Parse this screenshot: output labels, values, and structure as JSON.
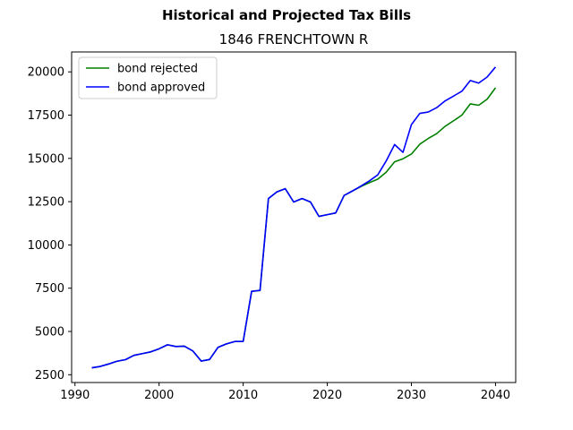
{
  "chart_data": {
    "type": "line",
    "suptitle": "Historical and Projected Tax Bills",
    "title": "1846 FRENCHTOWN R",
    "xlabel": "",
    "ylabel": "",
    "xlim": [
      1989.6,
      2042.4
    ],
    "ylim": [
      2050,
      21150
    ],
    "xticks": [
      1990,
      2000,
      2010,
      2020,
      2030,
      2040
    ],
    "yticks": [
      2500,
      5000,
      7500,
      10000,
      12500,
      15000,
      17500,
      20000
    ],
    "grid": false,
    "legend_placement": "top-left",
    "series": [
      {
        "name": "bond rejected",
        "color": "#008000",
        "x": [
          1992,
          1993,
          1994,
          1995,
          1996,
          1997,
          1998,
          1999,
          2000,
          2001,
          2002,
          2003,
          2004,
          2005,
          2006,
          2007,
          2008,
          2009,
          2010,
          2011,
          2012,
          2013,
          2014,
          2015,
          2016,
          2017,
          2018,
          2019,
          2020,
          2021,
          2022,
          2023,
          2024,
          2025,
          2026,
          2027,
          2028,
          2029,
          2030,
          2031,
          2032,
          2033,
          2034,
          2035,
          2036,
          2037,
          2038,
          2039,
          2040
        ],
        "y": [
          2900,
          2980,
          3120,
          3280,
          3370,
          3620,
          3720,
          3820,
          4000,
          4230,
          4130,
          4150,
          3880,
          3290,
          3380,
          4080,
          4280,
          4420,
          4430,
          7320,
          7370,
          12680,
          13060,
          13250,
          12480,
          12680,
          12480,
          11650,
          11750,
          11850,
          12860,
          13120,
          13380,
          13600,
          13800,
          14200,
          14800,
          14980,
          15250,
          15820,
          16150,
          16430,
          16850,
          17170,
          17500,
          18150,
          18070,
          18420,
          19080
        ]
      },
      {
        "name": "bond approved",
        "color": "#0000ff",
        "x": [
          1992,
          1993,
          1994,
          1995,
          1996,
          1997,
          1998,
          1999,
          2000,
          2001,
          2002,
          2003,
          2004,
          2005,
          2006,
          2007,
          2008,
          2009,
          2010,
          2011,
          2012,
          2013,
          2014,
          2015,
          2016,
          2017,
          2018,
          2019,
          2020,
          2021,
          2022,
          2023,
          2024,
          2025,
          2026,
          2027,
          2028,
          2029,
          2030,
          2031,
          2032,
          2033,
          2034,
          2035,
          2036,
          2037,
          2038,
          2039,
          2040
        ],
        "y": [
          2900,
          2980,
          3120,
          3280,
          3370,
          3620,
          3720,
          3820,
          4000,
          4230,
          4130,
          4150,
          3880,
          3290,
          3380,
          4080,
          4280,
          4420,
          4430,
          7320,
          7370,
          12680,
          13060,
          13250,
          12480,
          12680,
          12480,
          11650,
          11750,
          11850,
          12860,
          13120,
          13400,
          13700,
          14050,
          14850,
          15800,
          15350,
          16950,
          17600,
          17680,
          17930,
          18320,
          18600,
          18880,
          19500,
          19350,
          19700,
          20280
        ]
      }
    ]
  }
}
